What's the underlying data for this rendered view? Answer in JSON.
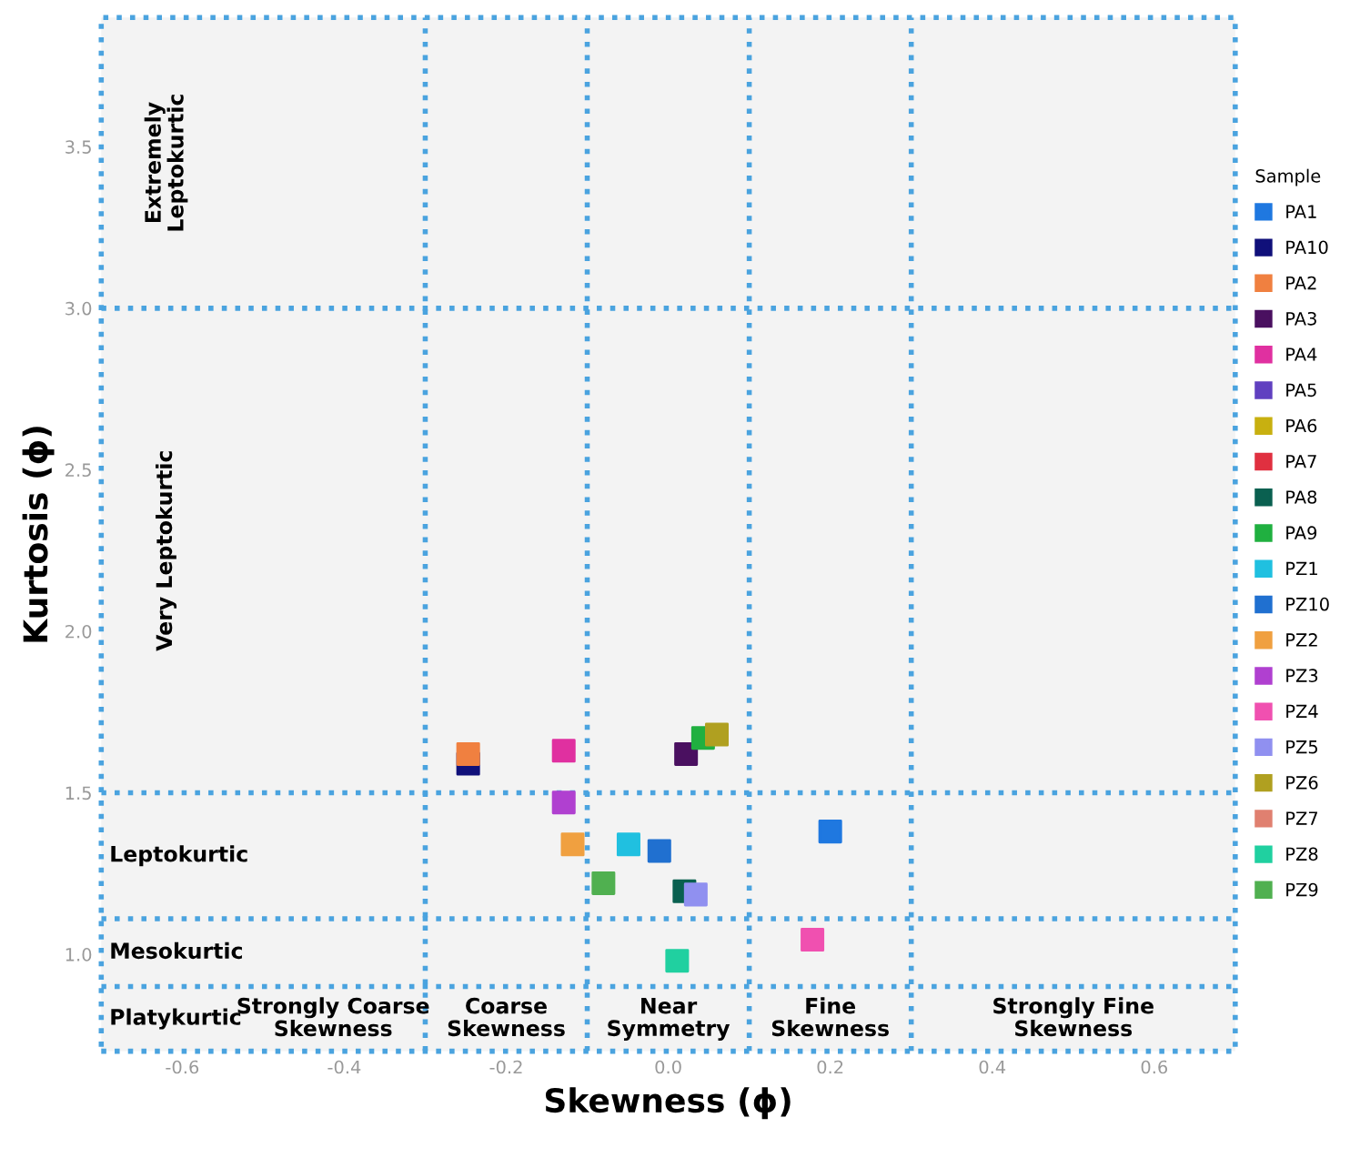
{
  "chart_data": {
    "type": "scatter",
    "xlabel": "Skewness (ϕ)",
    "ylabel": "Kurtosis (ϕ)",
    "legend_title": "Sample",
    "legend": "right",
    "marker": "square",
    "grid": false,
    "xlim": [
      -0.7,
      0.7
    ],
    "ylim": [
      0.7,
      3.9
    ],
    "xticks": [
      -0.6,
      -0.4,
      -0.2,
      {
        "value": 0,
        "label": "0.0"
      },
      0.2,
      0.4,
      0.6
    ],
    "yticks": [
      {
        "value": 1,
        "label": "1.0"
      },
      1.5,
      {
        "value": 2,
        "label": "2.0"
      },
      2.5,
      {
        "value": 3,
        "label": "3.0"
      },
      3.5
    ],
    "ref_lines": [
      {
        "axis": "y",
        "value": 0.9,
        "color": "#4aa3df",
        "line_style": "dotted"
      },
      {
        "axis": "y",
        "value": 1.11,
        "color": "#4aa3df",
        "line_style": "dotted"
      },
      {
        "axis": "y",
        "value": 1.5,
        "color": "#4aa3df",
        "line_style": "dotted"
      },
      {
        "axis": "y",
        "value": 3.0,
        "color": "#4aa3df",
        "line_style": "dotted"
      },
      {
        "axis": "x",
        "value": -0.3,
        "color": "#4aa3df",
        "line_style": "dotted"
      },
      {
        "axis": "x",
        "value": -0.1,
        "color": "#4aa3df",
        "line_style": "dotted"
      },
      {
        "axis": "x",
        "value": 0.1,
        "color": "#4aa3df",
        "line_style": "dotted"
      },
      {
        "axis": "x",
        "value": 0.3,
        "color": "#4aa3df",
        "line_style": "dotted"
      }
    ],
    "annotations": [
      "Extremely\nLeptokurtic",
      "Very Leptokurtic",
      "Leptokurtic",
      "Mesokurtic",
      "Platykurtic",
      "Strongly Coarse\nSkewness",
      "Coarse\nSkewness",
      "Near\nSymmetry",
      "Fine\nSkewness",
      "Strongly Fine\nSkewness"
    ],
    "series": [
      {
        "name": "PA1",
        "color": "#1f78e0",
        "x": [
          0.2
        ],
        "values": [
          1.38
        ]
      },
      {
        "name": "PA10",
        "color": "#10107a",
        "x": [
          -0.247
        ],
        "values": [
          1.59
        ]
      },
      {
        "name": "PA2",
        "color": "#f08040",
        "x": [
          -0.247
        ],
        "values": [
          1.62
        ]
      },
      {
        "name": "PA3",
        "color": "#4a1060",
        "x": [
          0.022
        ],
        "values": [
          1.62
        ]
      },
      {
        "name": "PA4",
        "color": "#e030a0",
        "x": [
          -0.129
        ],
        "values": [
          1.63
        ]
      },
      {
        "name": "PA5",
        "color": "#6040c0",
        "x": [
          null
        ],
        "values": [
          null
        ]
      },
      {
        "name": "PA6",
        "color": "#c8b010",
        "x": [
          null
        ],
        "values": [
          null
        ]
      },
      {
        "name": "PA7",
        "color": "#e03040",
        "x": [
          null
        ],
        "values": [
          null
        ]
      },
      {
        "name": "PA8",
        "color": "#0a6050",
        "x": [
          0.02
        ],
        "values": [
          1.195
        ]
      },
      {
        "name": "PA9",
        "color": "#20b040",
        "x": [
          0.043
        ],
        "values": [
          1.67
        ]
      },
      {
        "name": "PZ1",
        "color": "#20c0e0",
        "x": [
          -0.049
        ],
        "values": [
          1.34
        ]
      },
      {
        "name": "PZ10",
        "color": "#2070d0",
        "x": [
          -0.011
        ],
        "values": [
          1.32
        ]
      },
      {
        "name": "PZ2",
        "color": "#f0a040",
        "x": [
          -0.118
        ],
        "values": [
          1.34
        ]
      },
      {
        "name": "PZ3",
        "color": "#b040d0",
        "x": [
          -0.129
        ],
        "values": [
          1.47
        ]
      },
      {
        "name": "PZ4",
        "color": "#f050b0",
        "x": [
          0.178
        ],
        "values": [
          1.045
        ]
      },
      {
        "name": "PZ5",
        "color": "#9090f0",
        "x": [
          0.034
        ],
        "values": [
          1.185
        ]
      },
      {
        "name": "PZ6",
        "color": "#b0a020",
        "x": [
          0.06
        ],
        "values": [
          1.68
        ]
      },
      {
        "name": "PZ7",
        "color": "#e08070",
        "x": [
          null
        ],
        "values": [
          null
        ]
      },
      {
        "name": "PZ8",
        "color": "#20d0a0",
        "x": [
          0.011
        ],
        "values": [
          0.98
        ]
      },
      {
        "name": "PZ9",
        "color": "#50b050",
        "x": [
          -0.08
        ],
        "values": [
          1.22
        ]
      }
    ]
  }
}
